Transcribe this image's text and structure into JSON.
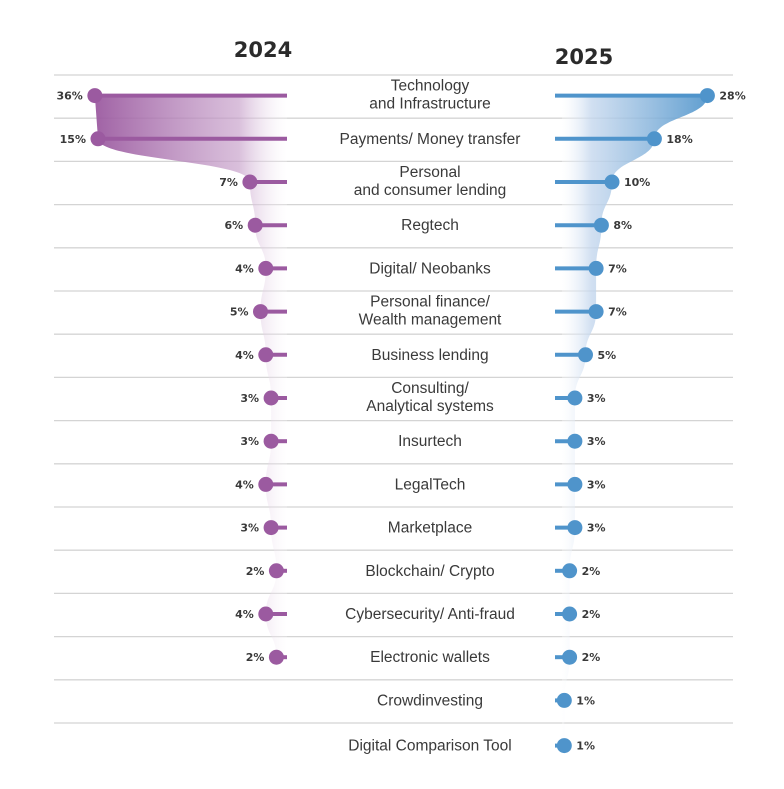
{
  "chart_data": {
    "type": "dumbbell-comparison",
    "title": "",
    "series": [
      {
        "name": "2024",
        "color": "#9b5aa0",
        "side": "left"
      },
      {
        "name": "2025",
        "color": "#4f94cb",
        "side": "right"
      }
    ],
    "categories": [
      [
        "Technology",
        "and Infrastructure"
      ],
      [
        "Payments/ Money transfer"
      ],
      [
        "Personal",
        "and consumer lending"
      ],
      [
        "Regtech"
      ],
      [
        "Digital/ Neobanks"
      ],
      [
        "Personal finance/",
        "Wealth management"
      ],
      [
        "Business lending"
      ],
      [
        "Consulting/",
        "Analytical systems"
      ],
      [
        "Insurtech"
      ],
      [
        "LegalTech"
      ],
      [
        "Marketplace"
      ],
      [
        "Blockchain/ Crypto"
      ],
      [
        "Cybersecurity/ Anti-fraud"
      ],
      [
        "Electronic wallets"
      ],
      [
        "Crowdinvesting"
      ],
      [
        "Digital Comparison Tool"
      ]
    ],
    "values_2024": [
      36,
      15,
      7,
      6,
      4,
      5,
      4,
      3,
      3,
      4,
      3,
      2,
      4,
      2,
      null,
      null
    ],
    "values_2025": [
      28,
      18,
      10,
      8,
      7,
      7,
      5,
      3,
      3,
      3,
      3,
      2,
      2,
      2,
      1,
      1
    ],
    "unit": "%",
    "grid": true,
    "legend": "none"
  }
}
